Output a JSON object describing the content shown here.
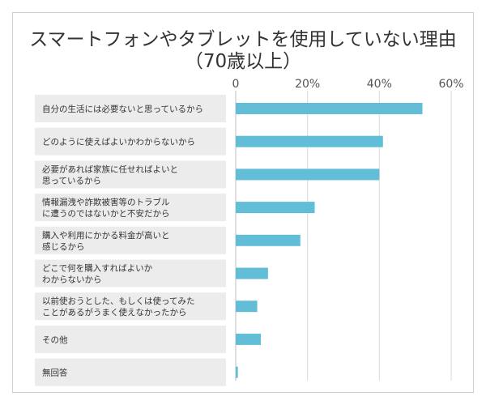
{
  "chart_data": {
    "type": "bar",
    "orientation": "horizontal",
    "title": "スマートフォンやタブレットを使用していない理由\n（70歳以上）",
    "categories": [
      "自分の生活には必要ないと思っているから",
      "どのように使えばよいかわからないから",
      "必要があれば家族に任せればよいと\n思っているから",
      "情報漏洩や詐欺被害等のトラブル\nに遭うのではないかと不安だから",
      "購入や利用にかかる料金が高いと\n感じるから",
      "どこで何を購入すればよいか\nわからないから",
      "以前使おうとした、もしくは使ってみた\nことがあるがうまく使えなかったから",
      "その他",
      "無回答"
    ],
    "values": [
      52,
      41,
      40,
      22,
      18,
      9,
      6,
      7,
      0.6
    ],
    "xlim": [
      0,
      60
    ],
    "xticks": [
      "0",
      "20%",
      "40%",
      "60%"
    ],
    "xtick_values": [
      0,
      20,
      40,
      60
    ],
    "grid": true,
    "bar_color": "#62bdd7",
    "legend": "none"
  }
}
